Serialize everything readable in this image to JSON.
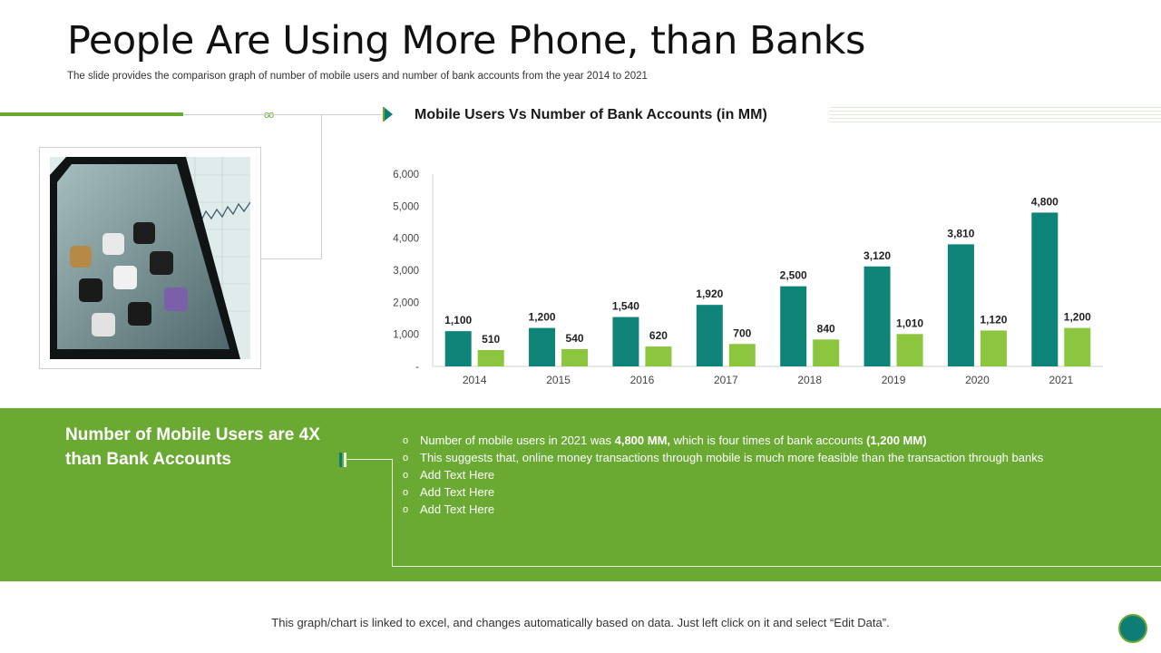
{
  "slide": {
    "title": "People Are Using More Phone, than Banks",
    "subtitle": "The slide provides the comparison graph of number of mobile users and number of bank accounts from the year 2014 to 2021",
    "dots": "oo"
  },
  "image": {
    "icon": "smartphone-photo"
  },
  "chart_data": {
    "type": "bar",
    "title": "Mobile Users Vs Number of Bank Accounts (in MM)",
    "categories": [
      "2014",
      "2015",
      "2016",
      "2017",
      "2018",
      "2019",
      "2020",
      "2021"
    ],
    "series": [
      {
        "values": [
          1100,
          1200,
          1540,
          1920,
          2500,
          3120,
          3810,
          4800
        ],
        "labels": [
          "1,100",
          "1,200",
          "1,540",
          "1,920",
          "2,500",
          "3,120",
          "3,810",
          "4,800"
        ],
        "color": "#0e8478"
      },
      {
        "values": [
          510,
          540,
          620,
          700,
          840,
          1010,
          1120,
          1200
        ],
        "labels": [
          "510",
          "540",
          "620",
          "700",
          "840",
          "1,010",
          "1,120",
          "1,200"
        ],
        "color": "#8cc63f"
      }
    ],
    "yticks": [
      "-",
      "1,000",
      "2,000",
      "3,000",
      "4,000",
      "5,000",
      "6,000"
    ],
    "ylim": [
      0,
      6000
    ],
    "grid": false,
    "legend": "none"
  },
  "panel": {
    "heading": "Number of Mobile Users are 4X than Bank Accounts",
    "bullet_marker": "o",
    "bullets": [
      {
        "pre": "Number of mobile users in 2021 was ",
        "b1": "4,800 MM,",
        "mid": " which is four times of bank accounts ",
        "b2": "(1,200 MM)"
      },
      {
        "pre": "This suggests that, online money transactions through mobile is much more feasible than the transaction through banks"
      },
      {
        "pre": "Add Text Here"
      },
      {
        "pre": "Add Text Here"
      },
      {
        "pre": "Add Text Here"
      }
    ]
  },
  "footer": {
    "note": "This graph/chart is linked to excel, and changes automatically based on data. Just left click on it and select “Edit Data”."
  },
  "colors": {
    "accent_green": "#6aaa33",
    "teal": "#0e7d75",
    "light_green": "#8cc63f"
  }
}
